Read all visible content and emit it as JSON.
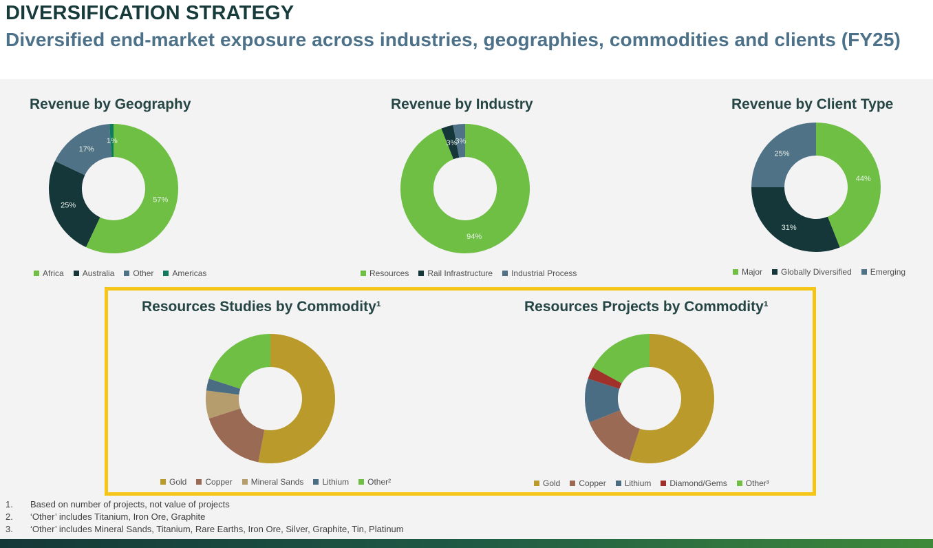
{
  "header": {
    "title": "DIVERSIFICATION STRATEGY",
    "subtitle": "Diversified end-market exposure across industries, geographies, commodities and clients (FY25)"
  },
  "colors": {
    "green": "#6fbf44",
    "dark": "#15373a",
    "slate": "#4f7287",
    "teal": "#0e7a5e",
    "gold": "#bb9a2c",
    "copper": "#9b6a55",
    "sand": "#b59d6d",
    "lithium": "#4a6d83",
    "gems": "#a0312a",
    "highlight": "#f5c518"
  },
  "chart_data": [
    {
      "id": "geo",
      "type": "pie",
      "title": "Revenue by Geography",
      "categories": [
        "Africa",
        "Australia",
        "Other",
        "Americas"
      ],
      "values": [
        57,
        25,
        17,
        1
      ],
      "labels": [
        "57%",
        "25%",
        "17%",
        "1%"
      ],
      "colors": [
        "#6fbf44",
        "#15373a",
        "#4f7287",
        "#0e7a5e"
      ],
      "legend": [
        "Africa",
        "Australia",
        "Other",
        "Americas"
      ]
    },
    {
      "id": "industry",
      "type": "pie",
      "title": "Revenue by Industry",
      "categories": [
        "Resources",
        "Rail Infrastructure",
        "Industrial Process"
      ],
      "values": [
        94,
        3,
        3
      ],
      "labels": [
        "94%",
        "3%",
        "3%"
      ],
      "colors": [
        "#6fbf44",
        "#15373a",
        "#4f7287"
      ],
      "legend": [
        "Resources",
        "Rail Infrastructure",
        "Industrial Process"
      ]
    },
    {
      "id": "client",
      "type": "pie",
      "title": "Revenue by Client Type",
      "categories": [
        "Major",
        "Globally Diversified",
        "Emerging"
      ],
      "values": [
        44,
        31,
        25
      ],
      "labels": [
        "44%",
        "31%",
        "25%"
      ],
      "colors": [
        "#6fbf44",
        "#15373a",
        "#4f7287"
      ],
      "legend": [
        "Major",
        "Globally Diversified",
        "Emerging"
      ]
    },
    {
      "id": "studies",
      "type": "pie",
      "title": "Resources Studies by Commodity¹",
      "categories": [
        "Gold",
        "Copper",
        "Mineral Sands",
        "Lithium",
        "Other²"
      ],
      "values": [
        53,
        17,
        7,
        3,
        20
      ],
      "colors": [
        "#bb9a2c",
        "#9b6a55",
        "#b59d6d",
        "#4a6d83",
        "#6fbf44"
      ],
      "legend": [
        "Gold",
        "Copper",
        "Mineral Sands",
        "Lithium",
        "Other²"
      ]
    },
    {
      "id": "projects",
      "type": "pie",
      "title": "Resources Projects by Commodity¹",
      "categories": [
        "Gold",
        "Copper",
        "Lithium",
        "Diamond/Gems",
        "Other³"
      ],
      "values": [
        55,
        14,
        11,
        3,
        17
      ],
      "colors": [
        "#bb9a2c",
        "#9b6a55",
        "#4a6d83",
        "#a0312a",
        "#6fbf44"
      ],
      "legend": [
        "Gold",
        "Copper",
        "Lithium",
        "Diamond/Gems",
        "Other³"
      ]
    }
  ],
  "footnotes": [
    {
      "num": "1.",
      "text": "Based on number of projects, not value of projects"
    },
    {
      "num": "2.",
      "text": "‘Other’ includes Titanium, Iron Ore, Graphite"
    },
    {
      "num": "3.",
      "text": "‘Other’ includes Mineral Sands, Titanium, Rare Earths, Iron Ore, Silver, Graphite, Tin, Platinum"
    }
  ]
}
